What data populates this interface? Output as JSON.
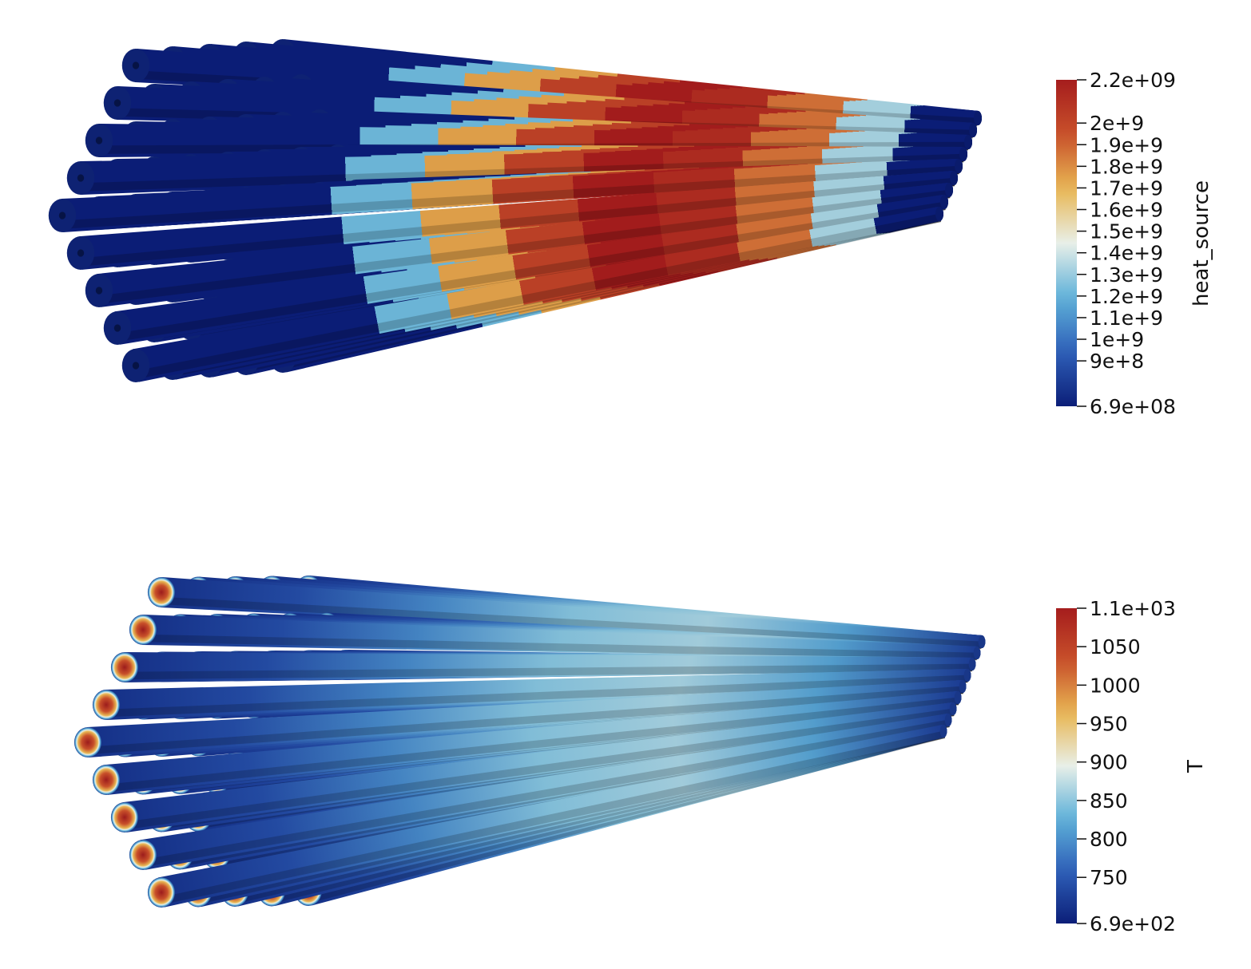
{
  "views": [
    {
      "field": "heat_source",
      "colorbar": {
        "title": "heat_source",
        "min": 690000000,
        "max": 2200000000,
        "ticks": [
          {
            "value": 2200000000,
            "label": "2.2e+09"
          },
          {
            "value": 2000000000,
            "label": "2e+9"
          },
          {
            "value": 1900000000,
            "label": "1.9e+9"
          },
          {
            "value": 1800000000,
            "label": "1.8e+9"
          },
          {
            "value": 1700000000,
            "label": "1.7e+9"
          },
          {
            "value": 1600000000,
            "label": "1.6e+9"
          },
          {
            "value": 1500000000,
            "label": "1.5e+9"
          },
          {
            "value": 1400000000,
            "label": "1.4e+9"
          },
          {
            "value": 1300000000,
            "label": "1.3e+9"
          },
          {
            "value": 1200000000,
            "label": "1.2e+9"
          },
          {
            "value": 1100000000,
            "label": "1.1e+9"
          },
          {
            "value": 1000000000,
            "label": "1e+9"
          },
          {
            "value": 900000000,
            "label": "9e+8"
          },
          {
            "value": 690000000,
            "label": "6.9e+08"
          }
        ]
      },
      "axial_bands_normalized_value": [
        0.0,
        0.35,
        0.7,
        0.88,
        1.0,
        0.95,
        0.78,
        0.42,
        0.0
      ],
      "end_face": "hollow"
    },
    {
      "field": "T",
      "colorbar": {
        "title": "T",
        "min": 690,
        "max": 1100,
        "ticks": [
          {
            "value": 1100,
            "label": "1.1e+03"
          },
          {
            "value": 1050,
            "label": "1050"
          },
          {
            "value": 1000,
            "label": "1000"
          },
          {
            "value": 950,
            "label": "950"
          },
          {
            "value": 900,
            "label": "900"
          },
          {
            "value": 850,
            "label": "850"
          },
          {
            "value": 800,
            "label": "800"
          },
          {
            "value": 750,
            "label": "750"
          },
          {
            "value": 690,
            "label": "6.9e+02"
          }
        ]
      },
      "axial_gradient_normalized_value": [
        0.05,
        0.12,
        0.25,
        0.38,
        0.42,
        0.3,
        0.08
      ],
      "end_face": "hot-core"
    }
  ],
  "colormap": [
    "#0b1e78",
    "#2e5fb8",
    "#5fb2d9",
    "#e8efe8",
    "#e8b653",
    "#c8502a",
    "#a51d1d"
  ],
  "rod_bundle": {
    "rows": [
      5,
      6,
      7,
      8,
      9,
      8,
      7,
      6,
      5
    ]
  }
}
